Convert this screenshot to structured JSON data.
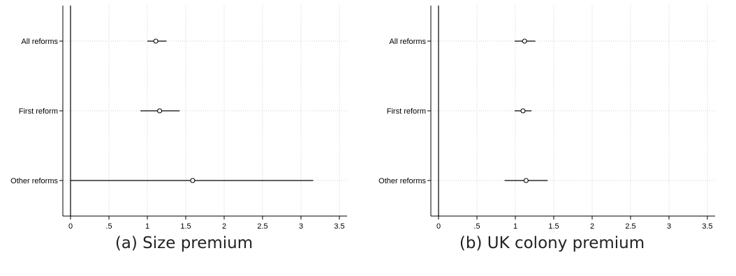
{
  "chart_data": [
    {
      "type": "scatter",
      "caption": "(a) Size premium",
      "categories": [
        "All reforms",
        "First reform",
        "Other reforms"
      ],
      "points": [
        {
          "label": "All reforms",
          "estimate": 1.11,
          "ci_low": 1.0,
          "ci_high": 1.25
        },
        {
          "label": "First reform",
          "estimate": 1.16,
          "ci_low": 0.91,
          "ci_high": 1.42
        },
        {
          "label": "Other reforms",
          "estimate": 1.59,
          "ci_low": 0.0,
          "ci_high": 3.16
        }
      ],
      "xlim": [
        -0.1,
        3.6
      ],
      "xticks": [
        0,
        0.5,
        1,
        1.5,
        2,
        2.5,
        3,
        3.5
      ],
      "xtick_labels": [
        "0",
        ".5",
        "1",
        "1.5",
        "2",
        "2.5",
        "3",
        "3.5"
      ],
      "reference_line": 0,
      "grid": true
    },
    {
      "type": "scatter",
      "caption": "(b) UK colony premium",
      "categories": [
        "All reforms",
        "First reform",
        "Other reforms"
      ],
      "points": [
        {
          "label": "All reforms",
          "estimate": 1.12,
          "ci_low": 0.99,
          "ci_high": 1.26
        },
        {
          "label": "First reform",
          "estimate": 1.1,
          "ci_low": 0.99,
          "ci_high": 1.21
        },
        {
          "label": "Other reforms",
          "estimate": 1.14,
          "ci_low": 0.86,
          "ci_high": 1.42
        }
      ],
      "xlim": [
        -0.1,
        3.6
      ],
      "xticks": [
        0,
        0.5,
        1,
        1.5,
        2,
        2.5,
        3,
        3.5
      ],
      "xtick_labels": [
        "0",
        ".5",
        "1",
        "1.5",
        "2",
        "2.5",
        "3",
        "3.5"
      ],
      "reference_line": 0,
      "grid": true
    }
  ]
}
